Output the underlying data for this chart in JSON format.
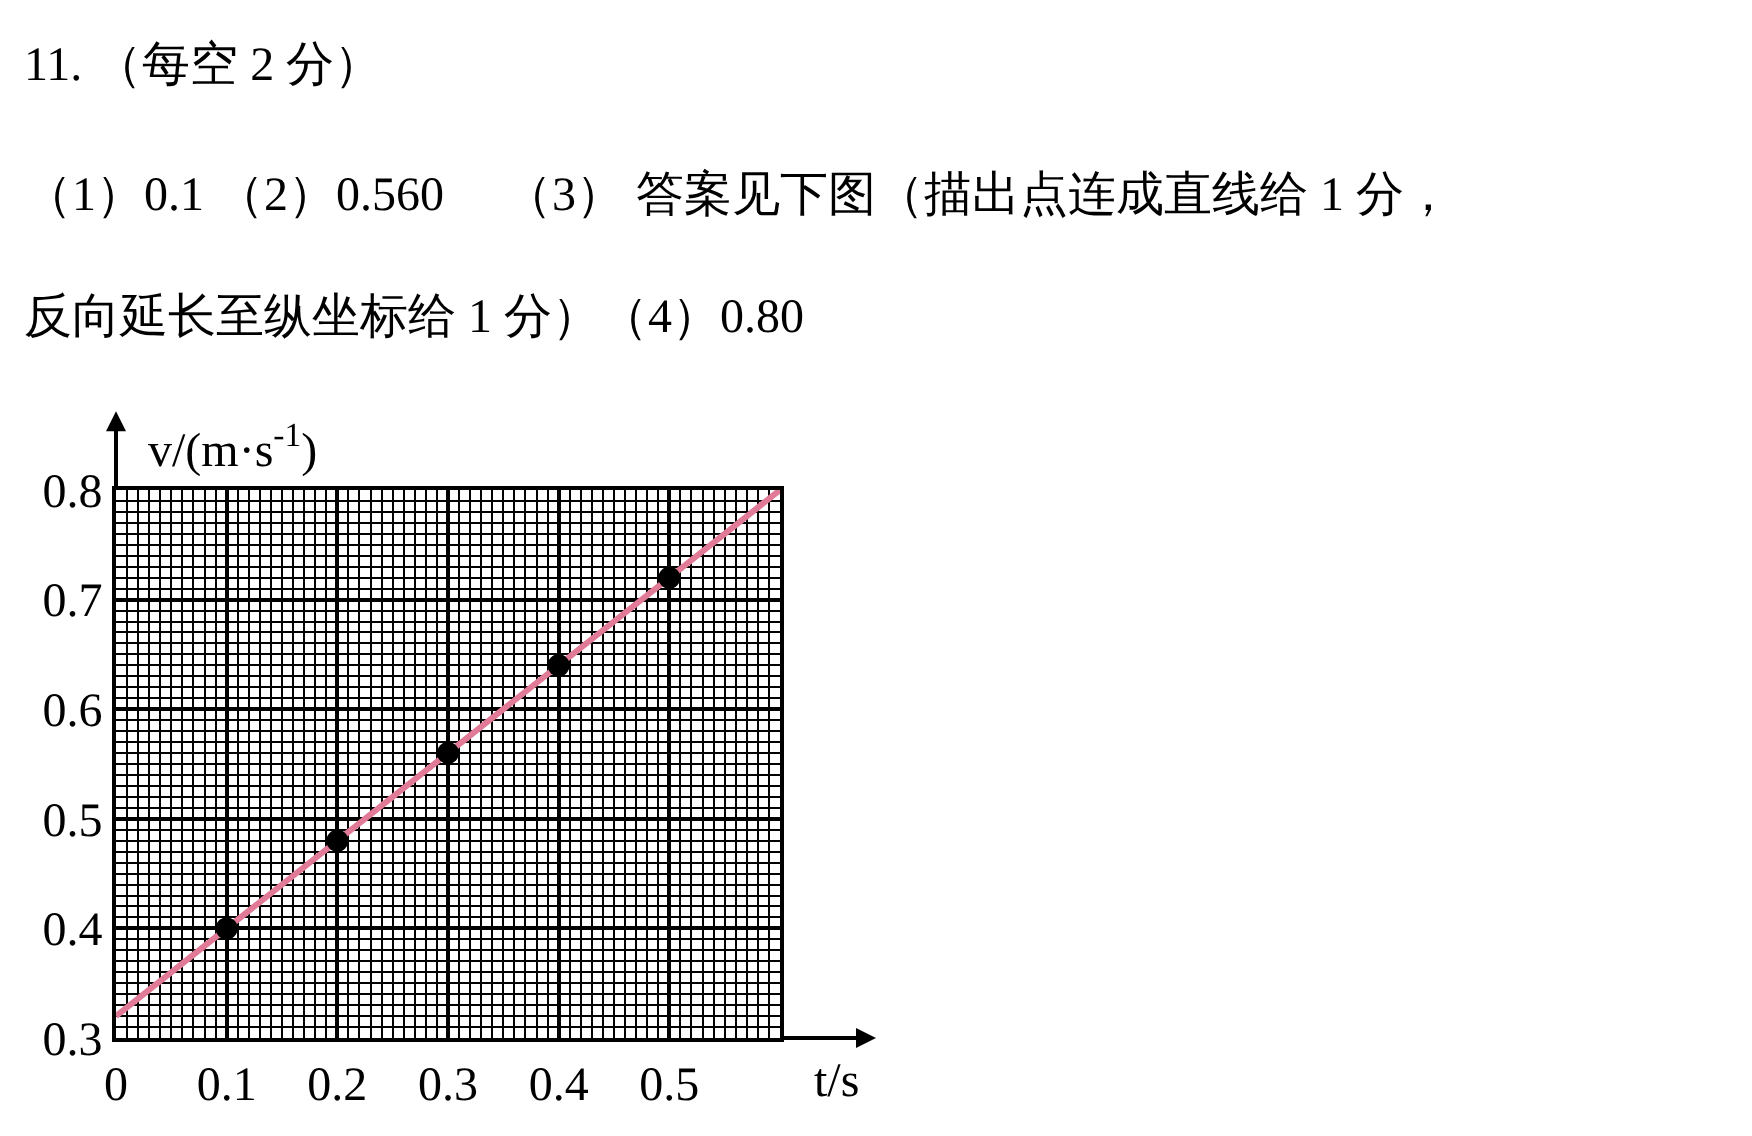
{
  "chart_data": {
    "type": "scatter",
    "annotations": [
      "11. （每空 2 分）",
      "（1）0.1 （2）0.560 　（3） 答案见下图（描出点连成直线给 1 分，",
      "反向延长至纵坐标给 1 分）（4）0.80"
    ],
    "xlabel": "t/s",
    "ylabel": "v/(m·s$^{-1}$)",
    "x": [
      0.1,
      0.2,
      0.3,
      0.4,
      0.5
    ],
    "series": [
      {
        "type": "line",
        "color": "#e07a96",
        "x": [
          0,
          0.6
        ],
        "values": [
          0.32,
          0.8
        ],
        "marker": "none"
      },
      {
        "color": "#000000",
        "values": [
          0.4,
          0.48,
          0.56,
          0.64,
          0.72
        ],
        "marker": "circle"
      }
    ],
    "xlim": [
      0,
      0.6
    ],
    "ylim": [
      0.3,
      0.8
    ],
    "xticks": [
      0,
      0.1,
      0.2,
      0.3,
      0.4,
      0.5
    ],
    "yticks": [
      0.3,
      0.4,
      0.5,
      0.6,
      0.7,
      0.8
    ],
    "grid": true
  }
}
